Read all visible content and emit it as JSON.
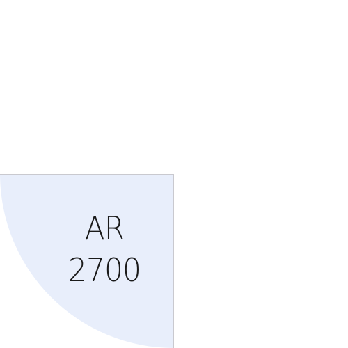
{
  "tile": {
    "line1": "AR",
    "line2": "2700",
    "fill_color": "#e8eefb",
    "border_color": "#c9c9cf",
    "text_color": "#1a1a1a"
  }
}
